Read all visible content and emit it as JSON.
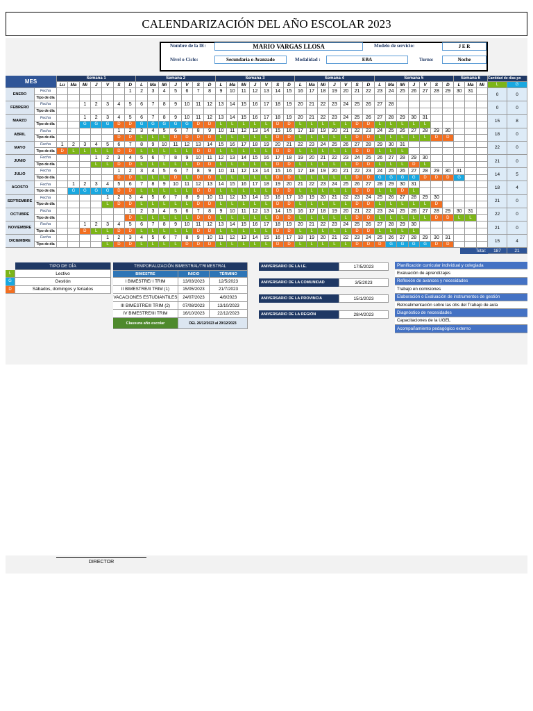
{
  "header": {
    "title": "CALENDARIZACIÓN DEL AÑO ESCOLAR 2023"
  },
  "info": {
    "fields": [
      {
        "label": "Nombre de la IE:",
        "value": "MARIO VARGAS LLOSA"
      },
      {
        "label": "Modelo de servicio:",
        "value": "J E R"
      },
      {
        "label": "Nivel o Ciclo:",
        "value": "Secundaria o Avanzado"
      },
      {
        "label": "Modalidad :",
        "value": "EBA"
      },
      {
        "label": "Turno:",
        "value": "Noche"
      }
    ]
  },
  "calendar": {
    "month_header": "MES",
    "weeks": [
      "Semana 1",
      "Semana 2",
      "Semana 3",
      "Semana 4",
      "Semana 5",
      "Semana 6"
    ],
    "day_headers": [
      "Lu",
      "Ma",
      "Mi",
      "J",
      "V",
      "S",
      "D",
      "L",
      "Ma",
      "Mi",
      "J",
      "V",
      "S",
      "D",
      "L",
      "Ma",
      "Mi",
      "J",
      "V",
      "S",
      "D",
      "L",
      "Ma",
      "Mi",
      "J",
      "V",
      "S",
      "D",
      "L",
      "Ma",
      "Mi",
      "J",
      "V",
      "S",
      "D",
      "L",
      "Ma",
      "Mi"
    ],
    "totals_header": "Cantidad de días po",
    "totals_columns": [
      "L",
      "G"
    ],
    "row_labels": [
      "Fecha",
      "Tipo de día"
    ],
    "months": [
      {
        "name": "ENERO",
        "dates": [
          null,
          null,
          null,
          null,
          null,
          null,
          1,
          2,
          3,
          4,
          5,
          6,
          7,
          8,
          9,
          10,
          11,
          12,
          13,
          14,
          15,
          16,
          17,
          18,
          19,
          20,
          21,
          22,
          23,
          24,
          25,
          26,
          27,
          28,
          29,
          30,
          31,
          null
        ],
        "totals": [
          0,
          0
        ]
      },
      {
        "name": "FEBRERO",
        "dates": [
          null,
          null,
          1,
          2,
          3,
          4,
          5,
          6,
          7,
          8,
          9,
          10,
          11,
          12,
          13,
          14,
          15,
          16,
          17,
          18,
          19,
          20,
          21,
          22,
          23,
          24,
          25,
          26,
          27,
          28,
          null,
          null,
          null,
          null,
          null,
          null,
          null,
          null
        ],
        "totals": [
          0,
          0
        ]
      },
      {
        "name": "MARZO",
        "dates": [
          null,
          null,
          1,
          2,
          3,
          4,
          5,
          6,
          7,
          8,
          9,
          10,
          11,
          12,
          13,
          14,
          15,
          16,
          17,
          18,
          19,
          20,
          21,
          22,
          23,
          24,
          25,
          26,
          27,
          28,
          29,
          30,
          31,
          null,
          null,
          null,
          null,
          null
        ],
        "types": [
          null,
          null,
          "G",
          "G",
          "G",
          "D",
          "D",
          "G",
          "G",
          "G",
          "G",
          "G",
          "D",
          "D",
          "L",
          "L",
          "L",
          "L",
          "L",
          "D",
          "D",
          "L",
          "L",
          "L",
          "L",
          "L",
          "D",
          "D",
          "L",
          "L",
          "L",
          "L",
          "L",
          null,
          null,
          null,
          null,
          null
        ],
        "totals": [
          15,
          8
        ]
      },
      {
        "name": "ABRIL",
        "dates": [
          null,
          null,
          null,
          null,
          null,
          1,
          2,
          3,
          4,
          5,
          6,
          7,
          8,
          9,
          10,
          11,
          12,
          13,
          14,
          15,
          16,
          17,
          18,
          19,
          20,
          21,
          22,
          23,
          24,
          25,
          26,
          27,
          28,
          29,
          30,
          null,
          null,
          null
        ],
        "types": [
          null,
          null,
          null,
          null,
          null,
          "D",
          "D",
          "L",
          "L",
          "L",
          "D",
          "D",
          "D",
          "D",
          "L",
          "L",
          "L",
          "L",
          "L",
          "D",
          "D",
          "L",
          "L",
          "L",
          "L",
          "L",
          "D",
          "D",
          "L",
          "L",
          "L",
          "L",
          "L",
          "D",
          "D",
          null,
          null,
          null
        ],
        "totals": [
          18,
          0
        ]
      },
      {
        "name": "MAYO",
        "dates": [
          1,
          2,
          3,
          4,
          5,
          6,
          7,
          8,
          9,
          10,
          11,
          12,
          13,
          14,
          15,
          16,
          17,
          18,
          19,
          20,
          21,
          22,
          23,
          24,
          25,
          26,
          27,
          28,
          29,
          30,
          31,
          null,
          null,
          null,
          null,
          null,
          null,
          null
        ],
        "types": [
          "D",
          "L",
          "L",
          "L",
          "L",
          "D",
          "D",
          "L",
          "L",
          "L",
          "L",
          "L",
          "D",
          "D",
          "L",
          "L",
          "L",
          "L",
          "L",
          "D",
          "D",
          "L",
          "L",
          "L",
          "L",
          "L",
          "D",
          "D",
          "L",
          "L",
          "L",
          null,
          null,
          null,
          null,
          null,
          null,
          null
        ],
        "totals": [
          22,
          0
        ]
      },
      {
        "name": "JUNIO",
        "dates": [
          null,
          null,
          null,
          1,
          2,
          3,
          4,
          5,
          6,
          7,
          8,
          9,
          10,
          11,
          12,
          13,
          14,
          15,
          16,
          17,
          18,
          19,
          20,
          21,
          22,
          23,
          24,
          25,
          26,
          27,
          28,
          29,
          30,
          null,
          null,
          null,
          null,
          null
        ],
        "types": [
          null,
          null,
          null,
          "L",
          "L",
          "D",
          "D",
          "L",
          "L",
          "L",
          "L",
          "L",
          "D",
          "D",
          "L",
          "L",
          "L",
          "L",
          "L",
          "D",
          "D",
          "L",
          "L",
          "L",
          "L",
          "L",
          "D",
          "D",
          "L",
          "L",
          "L",
          "D",
          "L",
          null,
          null,
          null,
          null,
          null
        ],
        "totals": [
          21,
          0
        ]
      },
      {
        "name": "JULIO",
        "dates": [
          null,
          null,
          null,
          null,
          null,
          1,
          2,
          3,
          4,
          5,
          6,
          7,
          8,
          9,
          10,
          11,
          12,
          13,
          14,
          15,
          16,
          17,
          18,
          19,
          20,
          21,
          22,
          23,
          24,
          25,
          26,
          27,
          28,
          29,
          30,
          31,
          null,
          null
        ],
        "types": [
          null,
          null,
          null,
          null,
          null,
          "D",
          "D",
          "L",
          "L",
          "L",
          "D",
          "L",
          "D",
          "D",
          "L",
          "L",
          "L",
          "L",
          "L",
          "D",
          "D",
          "L",
          "L",
          "L",
          "L",
          "L",
          "D",
          "D",
          "G",
          "G",
          "G",
          "G",
          "D",
          "D",
          "D",
          "G",
          null,
          null
        ],
        "totals": [
          14,
          5
        ]
      },
      {
        "name": "AGOSTO",
        "dates": [
          null,
          1,
          2,
          3,
          4,
          5,
          6,
          7,
          8,
          9,
          10,
          11,
          12,
          13,
          14,
          15,
          16,
          17,
          18,
          19,
          20,
          21,
          22,
          23,
          24,
          25,
          26,
          27,
          28,
          29,
          30,
          31,
          null,
          null,
          null,
          null,
          null,
          null
        ],
        "types": [
          null,
          "G",
          "G",
          "G",
          "G",
          "D",
          "D",
          "L",
          "L",
          "L",
          "L",
          "L",
          "D",
          "D",
          "L",
          "L",
          "L",
          "L",
          "L",
          "D",
          "D",
          "L",
          "L",
          "L",
          "L",
          "L",
          "D",
          "D",
          "L",
          "L",
          "D",
          "L",
          null,
          null,
          null,
          null,
          null,
          null
        ],
        "totals": [
          18,
          4
        ]
      },
      {
        "name": "SEPTIEMBRE",
        "dates": [
          null,
          null,
          null,
          null,
          1,
          2,
          3,
          4,
          5,
          6,
          7,
          8,
          9,
          10,
          11,
          12,
          13,
          14,
          15,
          16,
          17,
          18,
          19,
          20,
          21,
          22,
          23,
          24,
          25,
          26,
          27,
          28,
          29,
          30,
          null,
          null,
          null,
          null
        ],
        "types": [
          null,
          null,
          null,
          null,
          "L",
          "D",
          "D",
          "L",
          "L",
          "L",
          "L",
          "L",
          "D",
          "D",
          "L",
          "L",
          "L",
          "L",
          "L",
          "D",
          "D",
          "L",
          "L",
          "L",
          "L",
          "L",
          "D",
          "D",
          "L",
          "L",
          "L",
          "L",
          "L",
          "D",
          null,
          null,
          null,
          null
        ],
        "totals": [
          21,
          0
        ]
      },
      {
        "name": "OCTUBRE",
        "dates": [
          null,
          null,
          null,
          null,
          null,
          null,
          1,
          2,
          3,
          4,
          5,
          6,
          7,
          8,
          9,
          10,
          11,
          12,
          13,
          14,
          15,
          16,
          17,
          18,
          19,
          20,
          21,
          22,
          23,
          24,
          25,
          26,
          27,
          28,
          29,
          30,
          31,
          null
        ],
        "types": [
          null,
          null,
          null,
          null,
          null,
          null,
          "D",
          "L",
          "L",
          "L",
          "L",
          "L",
          "D",
          "D",
          "L",
          "L",
          "L",
          "L",
          "L",
          "D",
          "D",
          "L",
          "L",
          "L",
          "L",
          "L",
          "D",
          "D",
          "L",
          "L",
          "L",
          "L",
          "L",
          "D",
          "D",
          "L",
          "L",
          null
        ],
        "totals": [
          22,
          0
        ]
      },
      {
        "name": "NOVIEMBRE",
        "dates": [
          null,
          null,
          1,
          2,
          3,
          4,
          5,
          6,
          7,
          8,
          9,
          10,
          11,
          12,
          13,
          14,
          15,
          16,
          17,
          18,
          19,
          20,
          21,
          22,
          23,
          24,
          25,
          26,
          27,
          28,
          29,
          30,
          null,
          null,
          null,
          null,
          null,
          null
        ],
        "types": [
          null,
          null,
          "D",
          "L",
          "L",
          "D",
          "D",
          "L",
          "L",
          "L",
          "L",
          "L",
          "D",
          "D",
          "L",
          "L",
          "L",
          "L",
          "L",
          "D",
          "D",
          "L",
          "L",
          "L",
          "L",
          "L",
          "D",
          "D",
          "L",
          "L",
          "L",
          "L",
          null,
          null,
          null,
          null,
          null,
          null
        ],
        "totals": [
          21,
          0
        ]
      },
      {
        "name": "DICIEMBRE",
        "dates": [
          null,
          null,
          null,
          null,
          1,
          2,
          3,
          4,
          5,
          6,
          7,
          8,
          9,
          10,
          11,
          12,
          13,
          14,
          15,
          16,
          17,
          18,
          19,
          20,
          21,
          22,
          23,
          24,
          25,
          26,
          27,
          28,
          29,
          30,
          31,
          null,
          null,
          null
        ],
        "types": [
          null,
          null,
          null,
          null,
          "L",
          "D",
          "D",
          "L",
          "L",
          "L",
          "L",
          "D",
          "D",
          "D",
          "L",
          "L",
          "L",
          "L",
          "L",
          "D",
          "D",
          "L",
          "L",
          "L",
          "L",
          "L",
          "D",
          "D",
          "D",
          "G",
          "G",
          "G",
          "G",
          "D",
          "D",
          null,
          null,
          null
        ],
        "totals": [
          15,
          4
        ]
      }
    ],
    "total_label": "Total:",
    "total": [
      187,
      21
    ]
  },
  "day_types": {
    "title": "TIPO DE DÍA",
    "rows": [
      {
        "code": "L",
        "label": "Lectivo",
        "color": "#7cb518"
      },
      {
        "code": "G",
        "label": "Gestión",
        "color": "#19a8e0"
      },
      {
        "code": "D",
        "label": "Sábados, domingos y feriados",
        "color": "#f26f21"
      }
    ]
  },
  "periods": {
    "title": "TEMPORALIZACIÓN BIMESTRAL/TRIMESTRAL",
    "columns": [
      "BIMESTRE",
      "INICIO",
      "TÉRMINO"
    ],
    "rows": [
      [
        "I BIMESTRE/ I TRIM",
        "13/03/2023",
        "12/5/2023"
      ],
      [
        "II BIMESTRE/II TRIM (1)",
        "15/05/2023",
        "21/7/2023"
      ],
      [
        "VACACIONES ESTUDIANTILES",
        "24/07/2023",
        "4/8/2023"
      ],
      [
        "III BIMESTRE/II TRIM (2)",
        "07/08/2023",
        "13/10/2023"
      ],
      [
        "IV BIMESTRE/III TRIM",
        "16/10/2023",
        "22/12/2023"
      ]
    ],
    "closing": [
      "Clausura año escolar",
      "DEL 26/12/2023 al 29/12/2023"
    ]
  },
  "anniversaries": [
    {
      "label": "ANIVERSARIO DE LA I.E.",
      "date": "17/5/2023"
    },
    {
      "label": "ANIVERSARIO DE LA COMUNIDAD",
      "date": "3/5/2023"
    },
    {
      "label": "ANIVERSARIO DE LA PROVINCIA",
      "date": "15/1/2023"
    },
    {
      "label": "ANIVERSARIO DE LA REGIÓN",
      "date": "28/4/2023"
    }
  ],
  "activities": [
    "Planificación curricular individual y colegiada",
    "Evaluación de aprendizajes",
    "Reflexión de avances y necesidades",
    "Trabajo en comisiones",
    "Elaboración o Evaluación de instrumentos de gestión",
    "Retroalimentación sobre las obs del Trabajo de aula",
    "Diagnóstico de necesidades",
    "Capacitaciones de la UGEL",
    "Acompañamiento pedagógico externo"
  ],
  "signature": "DIRECTOR"
}
